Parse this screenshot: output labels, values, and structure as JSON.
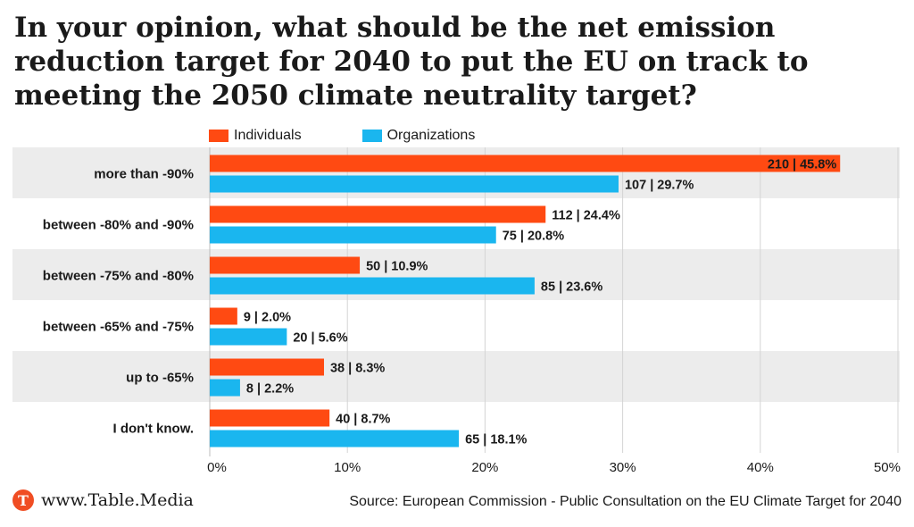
{
  "title": "In your opinion, what should be the net emission reduction target for 2040 to put the EU on track to meeting the 2050 climate neutrality target?",
  "legend": {
    "individuals": "Individuals",
    "organizations": "Organizations"
  },
  "colors": {
    "individuals": "#ff4a12",
    "organizations": "#1ab6ef",
    "band": "#ececec",
    "grid": "#d4d4d4"
  },
  "chart_data": {
    "type": "bar",
    "orientation": "horizontal",
    "categories": [
      "more than -90%",
      "between -80% and -90%",
      "between -75% and -80%",
      "between -65% and -75%",
      "up to -65%",
      "I don't know."
    ],
    "series": [
      {
        "name": "Individuals",
        "values": [
          45.8,
          24.4,
          10.9,
          2.0,
          8.3,
          8.7
        ],
        "labels": [
          "210 | 45.8%",
          "112 | 24.4%",
          "50 | 10.9%",
          "9 | 2.0%",
          "38 | 8.3%",
          "40 | 8.7%"
        ]
      },
      {
        "name": "Organizations",
        "values": [
          29.7,
          20.8,
          23.6,
          5.6,
          2.2,
          18.1
        ],
        "labels": [
          "107 | 29.7%",
          "75 | 20.8%",
          "85 | 23.6%",
          "20 | 5.6%",
          "8 | 2.2%",
          "65 | 18.1%"
        ]
      }
    ],
    "xlim": [
      0,
      50
    ],
    "xticks": [
      0,
      10,
      20,
      30,
      40,
      50
    ],
    "xtick_labels": [
      "0%",
      "10%",
      "20%",
      "30%",
      "40%",
      "50%"
    ],
    "grid": true,
    "legend_position": "top-left"
  },
  "footer": {
    "brand": "www.Table.Media",
    "logo_letter": "T",
    "source": "Source: European Commission - Public Consultation on the EU Climate Target for 2040"
  }
}
